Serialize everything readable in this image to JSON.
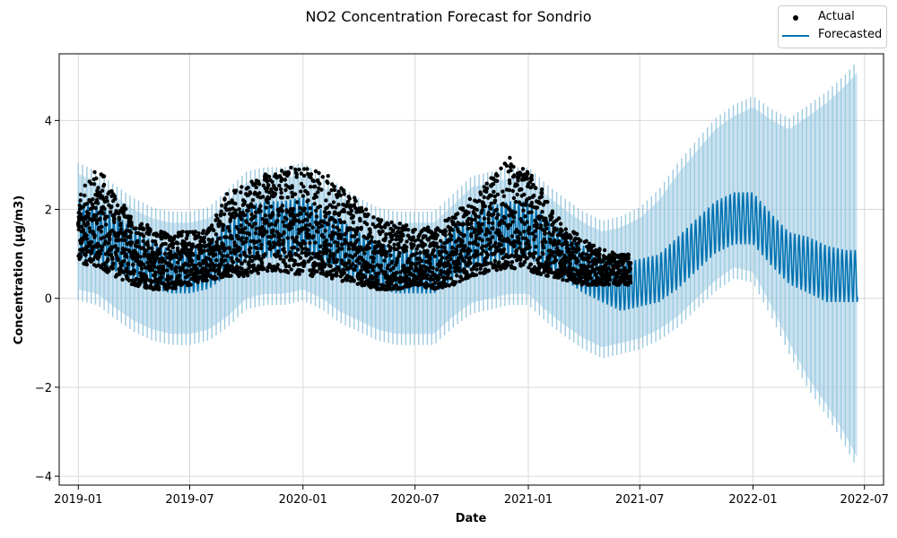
{
  "chart_data": {
    "type": "line",
    "title": "NO2 Concentration Forecast for Sondrio",
    "xlabel": "Date",
    "ylabel": "Concentration (µg/m3)",
    "xlim": [
      "2018-12-01",
      "2022-08-01"
    ],
    "ylim": [
      -4.2,
      5.5
    ],
    "x_ticks": [
      "2019-01",
      "2019-07",
      "2020-01",
      "2020-07",
      "2021-01",
      "2021-07",
      "2022-01",
      "2022-07"
    ],
    "y_ticks": [
      -4,
      -2,
      0,
      2,
      4
    ],
    "y_tick_labels": [
      "−4",
      "−2",
      "0",
      "2",
      "4"
    ],
    "grid": true,
    "legend_position": "top-right",
    "colors": {
      "actual": "#000000",
      "forecast": "#0072b2",
      "interval": "#9ecae1"
    },
    "series": [
      {
        "name": "Actual",
        "kind": "scatter",
        "x": [
          "2019-01-01",
          "2019-02-01",
          "2019-03-01",
          "2019-04-01",
          "2019-05-01",
          "2019-06-01",
          "2019-07-01",
          "2019-08-01",
          "2019-09-01",
          "2019-10-01",
          "2019-11-01",
          "2019-12-01",
          "2020-01-01",
          "2020-02-01",
          "2020-03-01",
          "2020-04-01",
          "2020-05-01",
          "2020-06-01",
          "2020-07-01",
          "2020-08-01",
          "2020-09-01",
          "2020-10-01",
          "2020-11-01",
          "2020-12-01",
          "2021-01-01",
          "2021-02-01",
          "2021-03-01",
          "2021-04-01",
          "2021-05-01",
          "2021-06-01"
        ],
        "upper": [
          2.3,
          3.0,
          2.4,
          1.8,
          1.6,
          1.5,
          1.5,
          1.6,
          2.4,
          2.6,
          2.8,
          2.9,
          3.0,
          2.9,
          2.5,
          2.2,
          1.8,
          1.7,
          1.6,
          1.6,
          1.9,
          2.3,
          2.7,
          3.2,
          2.9,
          2.3,
          1.6,
          1.4,
          1.1,
          1.0
        ],
        "lower": [
          0.8,
          0.7,
          0.5,
          0.3,
          0.2,
          0.2,
          0.3,
          0.4,
          0.5,
          0.5,
          0.6,
          0.6,
          0.5,
          0.5,
          0.4,
          0.3,
          0.2,
          0.2,
          0.3,
          0.2,
          0.3,
          0.5,
          0.6,
          0.7,
          0.6,
          0.5,
          0.4,
          0.3,
          0.3,
          0.3
        ]
      },
      {
        "name": "Forecasted",
        "kind": "line",
        "x": [
          "2019-01-01",
          "2019-02-01",
          "2019-03-01",
          "2019-04-01",
          "2019-05-01",
          "2019-06-01",
          "2019-07-01",
          "2019-08-01",
          "2019-09-01",
          "2019-10-01",
          "2019-11-01",
          "2019-12-01",
          "2020-01-01",
          "2020-02-01",
          "2020-03-01",
          "2020-04-01",
          "2020-05-01",
          "2020-06-01",
          "2020-07-01",
          "2020-08-01",
          "2020-09-01",
          "2020-10-01",
          "2020-11-01",
          "2020-12-01",
          "2021-01-01",
          "2021-02-01",
          "2021-03-01",
          "2021-04-01",
          "2021-05-01",
          "2021-06-01",
          "2021-07-01",
          "2021-08-01",
          "2021-09-01",
          "2021-10-01",
          "2021-11-01",
          "2021-12-01",
          "2022-01-01",
          "2022-02-01",
          "2022-03-01",
          "2022-04-01",
          "2022-05-01",
          "2022-06-01",
          "2022-06-20"
        ],
        "yhat_upper": [
          2.2,
          2.1,
          1.9,
          1.6,
          1.3,
          1.1,
          1.1,
          1.3,
          1.7,
          2.1,
          2.2,
          2.2,
          2.3,
          2.0,
          1.8,
          1.5,
          1.3,
          1.1,
          1.1,
          1.1,
          1.6,
          1.9,
          2.1,
          2.2,
          2.2,
          1.8,
          1.5,
          1.2,
          0.9,
          0.8,
          0.9,
          1.0,
          1.4,
          1.8,
          2.2,
          2.4,
          2.4,
          1.9,
          1.5,
          1.4,
          1.2,
          1.1,
          1.1
        ],
        "yhat_lower": [
          0.9,
          0.8,
          0.6,
          0.4,
          0.2,
          0.1,
          0.1,
          0.2,
          0.5,
          0.8,
          0.9,
          0.9,
          1.0,
          0.8,
          0.6,
          0.4,
          0.2,
          0.1,
          0.1,
          0.1,
          0.4,
          0.7,
          0.8,
          0.9,
          0.9,
          0.6,
          0.4,
          0.1,
          -0.1,
          -0.3,
          -0.2,
          -0.1,
          0.2,
          0.6,
          1.0,
          1.2,
          1.2,
          0.7,
          0.3,
          0.1,
          -0.1,
          -0.1,
          -0.1
        ],
        "interval_upper": [
          2.8,
          2.6,
          2.3,
          2.0,
          1.8,
          1.7,
          1.7,
          1.8,
          2.2,
          2.6,
          2.7,
          2.7,
          2.8,
          2.5,
          2.3,
          2.0,
          1.8,
          1.7,
          1.7,
          1.7,
          2.1,
          2.5,
          2.6,
          2.7,
          2.7,
          2.3,
          2.0,
          1.7,
          1.5,
          1.6,
          1.8,
          2.2,
          2.8,
          3.3,
          3.8,
          4.1,
          4.3,
          4.0,
          3.8,
          4.1,
          4.4,
          4.8,
          5.1
        ],
        "interval_lower": [
          0.2,
          0.1,
          -0.2,
          -0.5,
          -0.7,
          -0.8,
          -0.8,
          -0.7,
          -0.4,
          0.0,
          0.1,
          0.1,
          0.2,
          0.0,
          -0.3,
          -0.5,
          -0.7,
          -0.8,
          -0.8,
          -0.8,
          -0.4,
          -0.1,
          0.0,
          0.1,
          0.1,
          -0.3,
          -0.6,
          -0.9,
          -1.1,
          -1.0,
          -0.9,
          -0.7,
          -0.4,
          0.0,
          0.4,
          0.7,
          0.6,
          -0.2,
          -1.0,
          -1.8,
          -2.4,
          -3.1,
          -3.6
        ]
      }
    ]
  }
}
